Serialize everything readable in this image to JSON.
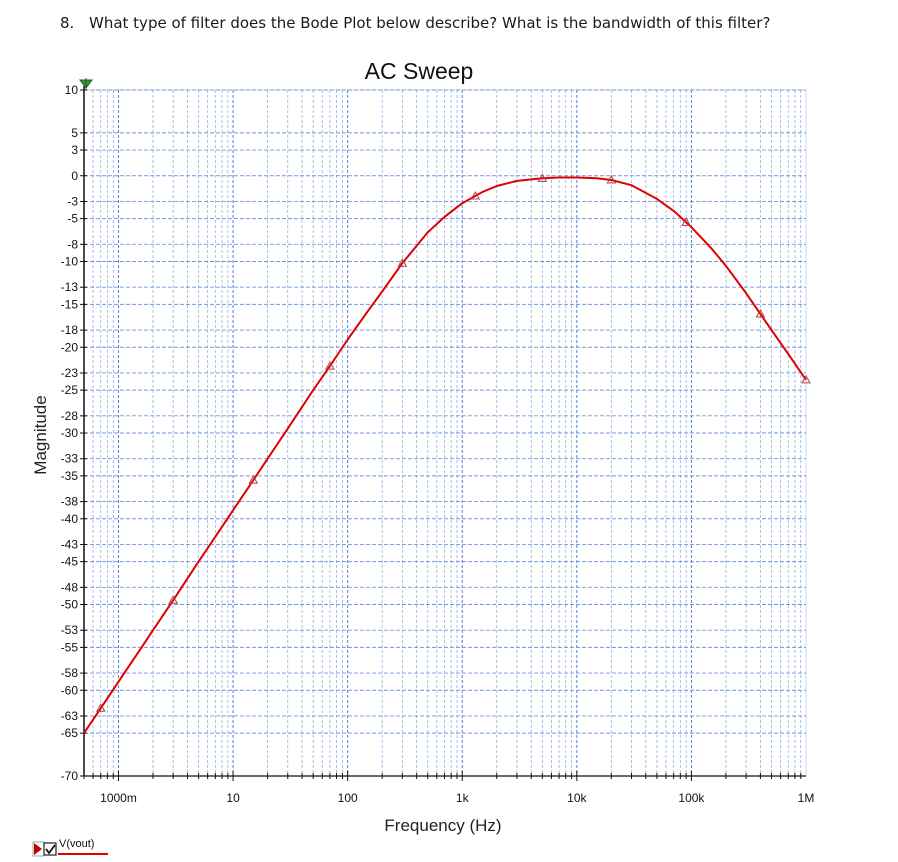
{
  "question": {
    "number": "8.",
    "text": "What type of filter does the Bode Plot below describe? What is the bandwidth of this filter?"
  },
  "chart_data": {
    "type": "line",
    "title": "AC Sweep",
    "xlabel": "Frequency (Hz)",
    "ylabel": "Magnitude",
    "x_scale": "log",
    "xlim": [
      0.5,
      1000000
    ],
    "ylim": [
      -70,
      10
    ],
    "grid": true,
    "x_ticks": [
      {
        "value": 1,
        "label": "1000m"
      },
      {
        "value": 10,
        "label": "10"
      },
      {
        "value": 100,
        "label": "100"
      },
      {
        "value": 1000,
        "label": "1k"
      },
      {
        "value": 10000,
        "label": "10k"
      },
      {
        "value": 100000,
        "label": "100k"
      },
      {
        "value": 1000000,
        "label": "1M"
      }
    ],
    "y_ticks": [
      {
        "value": 10,
        "label": "10"
      },
      {
        "value": 5,
        "label": "5"
      },
      {
        "value": 3,
        "label": "3"
      },
      {
        "value": 0,
        "label": "0"
      },
      {
        "value": -3,
        "label": "-3"
      },
      {
        "value": -5,
        "label": "-5"
      },
      {
        "value": -8,
        "label": "-8"
      },
      {
        "value": -10,
        "label": "-10"
      },
      {
        "value": -13,
        "label": "-13"
      },
      {
        "value": -15,
        "label": "-15"
      },
      {
        "value": -18,
        "label": "-18"
      },
      {
        "value": -20,
        "label": "-20"
      },
      {
        "value": -23,
        "label": "-23"
      },
      {
        "value": -25,
        "label": "-25"
      },
      {
        "value": -28,
        "label": "-28"
      },
      {
        "value": -30,
        "label": "-30"
      },
      {
        "value": -33,
        "label": "-33"
      },
      {
        "value": -35,
        "label": "-35"
      },
      {
        "value": -38,
        "label": "-38"
      },
      {
        "value": -40,
        "label": "-40"
      },
      {
        "value": -43,
        "label": "-43"
      },
      {
        "value": -45,
        "label": "-45"
      },
      {
        "value": -48,
        "label": "-48"
      },
      {
        "value": -50,
        "label": "-50"
      },
      {
        "value": -53,
        "label": "-53"
      },
      {
        "value": -55,
        "label": "-55"
      },
      {
        "value": -58,
        "label": "-58"
      },
      {
        "value": -60,
        "label": "-60"
      },
      {
        "value": -63,
        "label": "-63"
      },
      {
        "value": -65,
        "label": "-65"
      },
      {
        "value": -70,
        "label": "-70"
      }
    ],
    "series": [
      {
        "name": "V(vout)",
        "color": "#e00000",
        "x": [
          0.5,
          0.7,
          1,
          1.5,
          2,
          3,
          5,
          7,
          10,
          15,
          20,
          30,
          50,
          70,
          100,
          150,
          200,
          300,
          500,
          700,
          1000,
          1500,
          2000,
          3000,
          5000,
          7000,
          10000,
          15000,
          20000,
          30000,
          50000,
          70000,
          100000,
          150000,
          200000,
          300000,
          500000,
          700000,
          1000000
        ],
        "values": [
          -65.0,
          -62.1,
          -59.0,
          -55.5,
          -53.0,
          -49.5,
          -45.0,
          -42.1,
          -39.0,
          -35.5,
          -33.0,
          -29.5,
          -25.0,
          -22.2,
          -19.1,
          -15.8,
          -13.5,
          -10.2,
          -6.6,
          -4.8,
          -3.2,
          -1.9,
          -1.2,
          -0.6,
          -0.3,
          -0.2,
          -0.2,
          -0.3,
          -0.5,
          -1.1,
          -2.7,
          -4.1,
          -6.0,
          -8.5,
          -10.5,
          -13.7,
          -18.0,
          -20.8,
          -23.8
        ]
      }
    ],
    "markers_x": [
      0.7,
      3,
      15,
      70,
      300,
      1300,
      5000,
      20000,
      90000,
      400000,
      1000000
    ]
  }
}
